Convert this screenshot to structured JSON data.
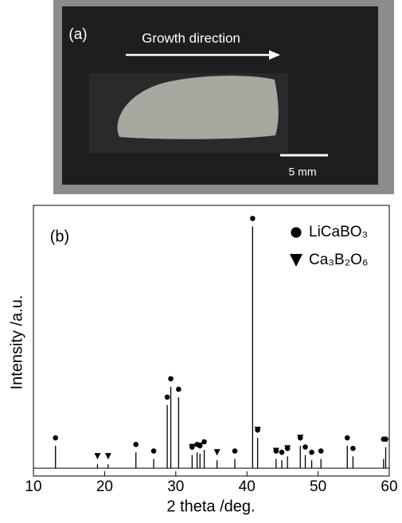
{
  "photo": {
    "panel_label": "(a)",
    "arrow_label": "Growth direction",
    "scale_label": "5 mm"
  },
  "chart_data": {
    "type": "stem",
    "panel_label": "(b)",
    "x_label": "2 theta /deg.",
    "y_label": "Intensity /a.u.",
    "xlim": [
      10,
      60
    ],
    "xticks": [
      10,
      20,
      30,
      40,
      50,
      60
    ],
    "ylim": [
      -3,
      100
    ],
    "color": "#000000",
    "peaks": {
      "x": [
        13.1,
        19.0,
        20.5,
        24.4,
        26.9,
        28.8,
        29.3,
        30.4,
        32.3,
        33.0,
        33.4,
        34.0,
        35.8,
        38.3,
        40.8,
        41.5,
        44.1,
        44.9,
        45.7,
        47.5,
        48.2,
        49.1,
        50.4,
        54.1,
        54.9,
        59.2,
        59.5
      ],
      "values": [
        8.5,
        1.5,
        1.5,
        6,
        3.5,
        24,
        31,
        27,
        5,
        6,
        5.5,
        7,
        3,
        3.5,
        92,
        11.5,
        3.5,
        3,
        4.5,
        8.5,
        5,
        3,
        3.5,
        8.5,
        4.5,
        3.5,
        8
      ]
    },
    "series": [
      {
        "name": "LiCaBO₃",
        "marker": "circle",
        "x": [
          13.1,
          24.4,
          26.9,
          28.8,
          29.3,
          30.4,
          32.3,
          33.0,
          33.4,
          34.0,
          38.3,
          40.8,
          41.5,
          44.1,
          44.9,
          45.7,
          47.5,
          48.2,
          49.1,
          50.4,
          54.1,
          54.9,
          59.2,
          59.5
        ]
      },
      {
        "name": "Ca₃B₂O₆",
        "marker": "triangle",
        "x": [
          19.0,
          20.5,
          32.3,
          33.4,
          35.8,
          41.5,
          44.1,
          45.7,
          47.5
        ]
      }
    ]
  }
}
